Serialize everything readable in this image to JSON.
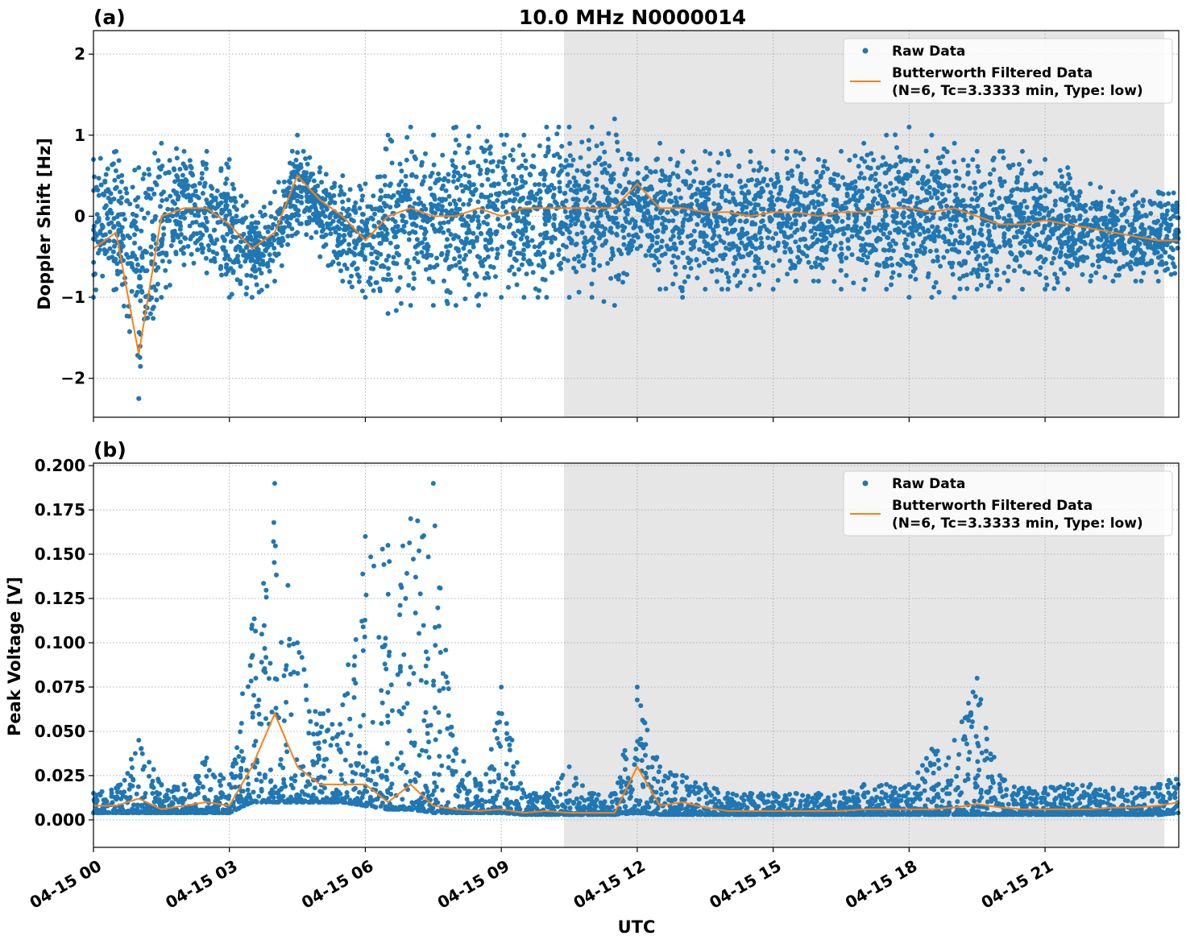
{
  "chart_data": [
    {
      "type": "scatter",
      "panel_label": "(a)",
      "title": "10.0 MHz N0000014",
      "xlabel": "",
      "ylabel": "Doppler Shift [Hz]",
      "ylim": [
        -2.48,
        2.29
      ],
      "yticks": [
        2,
        1,
        0,
        -1,
        -2
      ],
      "ytick_labels": [
        "2",
        "1",
        "0",
        "−1",
        "−2"
      ],
      "xlim": [
        "00:00",
        "23:57"
      ],
      "grid": true,
      "legend_position": "top-right",
      "legend": [
        "Raw Data",
        "Butterworth Filtered Data",
        "(N=6, Tc=3.3333 min, Type: low)"
      ],
      "shaded_span": [
        "10:23",
        "23:38"
      ],
      "shade_color": "#e6e6e6",
      "colors": {
        "raw": "#1f77b4",
        "filtered": "#ff7f0e"
      },
      "x": [
        "00:00",
        "00:30",
        "01:00",
        "01:30",
        "02:00",
        "02:30",
        "03:00",
        "03:30",
        "04:00",
        "04:30",
        "05:00",
        "05:30",
        "06:00",
        "06:30",
        "07:00",
        "07:30",
        "08:00",
        "08:30",
        "09:00",
        "09:30",
        "10:00",
        "10:30",
        "11:00",
        "11:30",
        "12:00",
        "12:30",
        "13:00",
        "13:30",
        "14:00",
        "14:30",
        "15:00",
        "15:30",
        "16:00",
        "16:30",
        "17:00",
        "17:30",
        "18:00",
        "18:30",
        "19:00",
        "19:30",
        "20:00",
        "20:30",
        "21:00",
        "21:30",
        "22:00",
        "22:30",
        "23:00",
        "23:30",
        "23:57"
      ],
      "series": [
        {
          "name": "Butterworth Filtered Data",
          "kind": "line",
          "values": [
            -0.4,
            -0.2,
            -1.7,
            0.0,
            0.1,
            0.1,
            -0.1,
            -0.4,
            -0.2,
            0.5,
            0.2,
            0.0,
            -0.3,
            0.0,
            0.1,
            0.0,
            0.0,
            0.1,
            0.0,
            0.1,
            0.1,
            0.1,
            0.1,
            0.1,
            0.4,
            0.1,
            0.1,
            0.05,
            0.05,
            0.0,
            0.05,
            0.05,
            0.0,
            0.05,
            0.05,
            0.1,
            0.1,
            0.05,
            0.1,
            0.0,
            -0.1,
            -0.1,
            -0.05,
            -0.1,
            -0.15,
            -0.2,
            -0.25,
            -0.3,
            -0.3
          ]
        },
        {
          "name": "Raw Data",
          "kind": "scatter-range",
          "low": [
            -1.0,
            -0.9,
            -2.25,
            -1.0,
            -0.6,
            -0.7,
            -1.0,
            -1.0,
            -0.8,
            -0.2,
            -0.5,
            -0.8,
            -1.0,
            -1.2,
            -1.1,
            -1.1,
            -1.1,
            -1.1,
            -1.0,
            -1.0,
            -1.0,
            -1.0,
            -1.0,
            -1.1,
            -0.4,
            -0.9,
            -1.0,
            -0.9,
            -0.9,
            -0.9,
            -0.9,
            -0.8,
            -0.8,
            -0.9,
            -0.9,
            -0.9,
            -1.0,
            -1.0,
            -1.0,
            -0.9,
            -0.9,
            -0.9,
            -0.9,
            -0.9,
            -0.8,
            -0.8,
            -0.8,
            -0.8,
            -0.8
          ],
          "high": [
            0.7,
            0.8,
            0.6,
            0.9,
            0.8,
            0.8,
            0.7,
            0.0,
            0.3,
            1.0,
            0.6,
            0.5,
            0.4,
            1.0,
            1.1,
            1.0,
            1.1,
            1.1,
            1.0,
            1.0,
            1.1,
            1.1,
            1.1,
            1.2,
            0.7,
            0.9,
            0.8,
            0.8,
            0.8,
            0.8,
            0.8,
            0.8,
            0.7,
            0.8,
            0.9,
            1.0,
            1.1,
            1.0,
            0.9,
            0.8,
            0.8,
            0.8,
            0.7,
            0.6,
            0.4,
            0.3,
            0.3,
            0.3,
            0.4
          ]
        }
      ]
    },
    {
      "type": "scatter",
      "panel_label": "(b)",
      "xlabel": "UTC",
      "ylabel": "Peak Voltage [V]",
      "ylim": [
        -0.0155,
        0.2014
      ],
      "yticks": [
        0.2,
        0.175,
        0.15,
        0.125,
        0.1,
        0.075,
        0.05,
        0.025,
        0.0
      ],
      "ytick_labels": [
        "0.200",
        "0.175",
        "0.150",
        "0.125",
        "0.100",
        "0.075",
        "0.050",
        "0.025",
        "0.000"
      ],
      "xlim": [
        "00:00",
        "23:57"
      ],
      "xticks": [
        "00:00",
        "03:00",
        "06:00",
        "09:00",
        "12:00",
        "15:00",
        "18:00",
        "21:00"
      ],
      "xtick_labels": [
        "04-15 00",
        "04-15 03",
        "04-15 06",
        "04-15 09",
        "04-15 12",
        "04-15 15",
        "04-15 18",
        "04-15 21"
      ],
      "grid": true,
      "legend_position": "top-right",
      "legend": [
        "Raw Data",
        "Butterworth Filtered Data",
        "(N=6, Tc=3.3333 min, Type: low)"
      ],
      "shaded_span": [
        "10:23",
        "23:38"
      ],
      "shade_color": "#e6e6e6",
      "colors": {
        "raw": "#1f77b4",
        "filtered": "#ff7f0e"
      },
      "x": [
        "00:00",
        "00:30",
        "01:00",
        "01:30",
        "02:00",
        "02:30",
        "03:00",
        "03:30",
        "04:00",
        "04:30",
        "05:00",
        "05:30",
        "06:00",
        "06:30",
        "07:00",
        "07:30",
        "08:00",
        "08:30",
        "09:00",
        "09:30",
        "10:00",
        "10:30",
        "11:00",
        "11:30",
        "12:00",
        "12:30",
        "13:00",
        "13:30",
        "14:00",
        "14:30",
        "15:00",
        "15:30",
        "16:00",
        "16:30",
        "17:00",
        "17:30",
        "18:00",
        "18:30",
        "19:00",
        "19:30",
        "20:00",
        "20:30",
        "21:00",
        "21:30",
        "22:00",
        "22:30",
        "23:00",
        "23:30",
        "23:57"
      ],
      "series": [
        {
          "name": "Butterworth Filtered Data",
          "kind": "line",
          "values": [
            0.008,
            0.008,
            0.012,
            0.006,
            0.008,
            0.01,
            0.008,
            0.03,
            0.06,
            0.03,
            0.02,
            0.02,
            0.02,
            0.01,
            0.02,
            0.008,
            0.006,
            0.005,
            0.006,
            0.004,
            0.005,
            0.004,
            0.004,
            0.004,
            0.03,
            0.008,
            0.01,
            0.007,
            0.005,
            0.005,
            0.005,
            0.005,
            0.005,
            0.005,
            0.006,
            0.006,
            0.006,
            0.006,
            0.007,
            0.009,
            0.007,
            0.006,
            0.006,
            0.006,
            0.006,
            0.007,
            0.007,
            0.008,
            0.01
          ]
        },
        {
          "name": "Raw Data",
          "kind": "scatter-range",
          "low": [
            0.004,
            0.004,
            0.004,
            0.004,
            0.004,
            0.004,
            0.004,
            0.01,
            0.01,
            0.01,
            0.01,
            0.01,
            0.008,
            0.006,
            0.006,
            0.004,
            0.004,
            0.004,
            0.004,
            0.003,
            0.003,
            0.003,
            0.003,
            0.003,
            0.004,
            0.003,
            0.003,
            0.003,
            0.003,
            0.003,
            0.003,
            0.003,
            0.003,
            0.003,
            0.003,
            0.003,
            0.003,
            0.003,
            0.003,
            0.003,
            0.003,
            0.003,
            0.003,
            0.003,
            0.003,
            0.003,
            0.003,
            0.003,
            0.004
          ],
          "high": [
            0.015,
            0.018,
            0.045,
            0.02,
            0.02,
            0.035,
            0.02,
            0.11,
            0.19,
            0.1,
            0.06,
            0.065,
            0.16,
            0.155,
            0.17,
            0.19,
            0.04,
            0.02,
            0.075,
            0.015,
            0.015,
            0.03,
            0.015,
            0.015,
            0.075,
            0.03,
            0.025,
            0.02,
            0.015,
            0.015,
            0.015,
            0.015,
            0.015,
            0.015,
            0.02,
            0.02,
            0.02,
            0.04,
            0.045,
            0.08,
            0.025,
            0.018,
            0.018,
            0.02,
            0.02,
            0.018,
            0.018,
            0.02,
            0.025
          ]
        }
      ]
    }
  ]
}
